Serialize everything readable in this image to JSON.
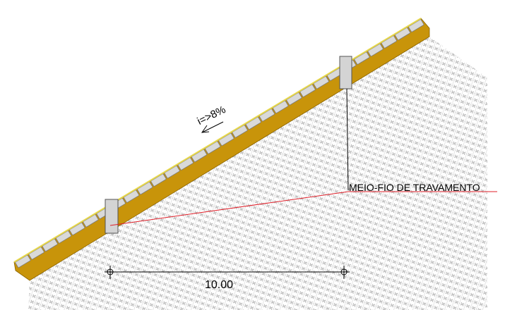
{
  "diagram": {
    "slope_label": "i=>8%",
    "callout_label": "MEIO-FIO DE TRAVAMENTO",
    "dimension_label": "10.00",
    "colors": {
      "base_layer": "#c8940a",
      "pavers": "#d9d9d9",
      "paver_edge": "#7a7a7a",
      "top_edge": "#e8d84a",
      "curb": "#d4d4d4",
      "callout_line_red": "#e0202a",
      "leader_black": "#000000",
      "soil_hatch": "#b5b5b5"
    }
  }
}
